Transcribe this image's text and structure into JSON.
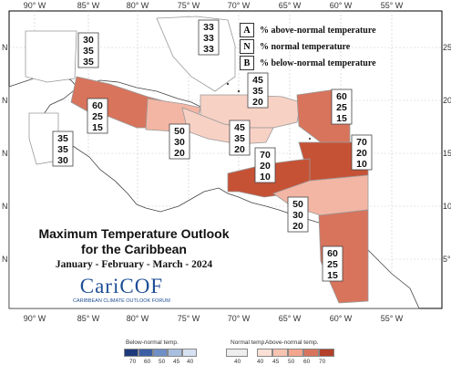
{
  "map": {
    "lon_labels": [
      "90° W",
      "85° W",
      "80° W",
      "75° W",
      "70° W",
      "65° W",
      "60° W",
      "55° W"
    ],
    "lat_labels": [
      "25°",
      "20°",
      "15°",
      "10°",
      "5°"
    ],
    "left_lat_labels": [
      "N",
      "N",
      "N",
      "N",
      "N"
    ],
    "regions": [
      {
        "id": "bahamas-north",
        "probs": [
          "33",
          "33",
          "33"
        ],
        "color": "#ffffff"
      },
      {
        "id": "gulf-west",
        "probs": [
          "30",
          "35",
          "35"
        ],
        "color": "#ffffff"
      },
      {
        "id": "belize-region",
        "probs": [
          "35",
          "35",
          "30"
        ],
        "color": "#ffffff"
      },
      {
        "id": "yucatan-strip",
        "probs": [
          "60",
          "25",
          "15"
        ],
        "color": "#d8745c"
      },
      {
        "id": "jamaica-cuba",
        "probs": [
          "50",
          "30",
          "20"
        ],
        "color": "#f3b6a4"
      },
      {
        "id": "greater-antilles-north",
        "probs": [
          "45",
          "35",
          "20"
        ],
        "color": "#f8d1c5"
      },
      {
        "id": "hispaniola-central",
        "probs": [
          "45",
          "35",
          "20"
        ],
        "color": "#f8d1c5"
      },
      {
        "id": "lesser-antilles-north",
        "probs": [
          "60",
          "25",
          "15"
        ],
        "color": "#d8745c"
      },
      {
        "id": "lesser-antilles-central",
        "probs": [
          "70",
          "20",
          "10"
        ],
        "color": "#c65236"
      },
      {
        "id": "caribbean-sea-south",
        "probs": [
          "70",
          "20",
          "10"
        ],
        "color": "#c65236"
      },
      {
        "id": "northern-sa-coast",
        "probs": [
          "50",
          "30",
          "20"
        ],
        "color": "#f3b6a4"
      },
      {
        "id": "guianas",
        "probs": [
          "60",
          "25",
          "15"
        ],
        "color": "#d8745c"
      }
    ]
  },
  "key": {
    "rows": [
      {
        "letter": "A",
        "label": "% above-normal temperature"
      },
      {
        "letter": "N",
        "label": "% normal temperature"
      },
      {
        "letter": "B",
        "label": "% below-normal temperature"
      }
    ]
  },
  "title": {
    "line1": "Maximum Temperature Outlook",
    "line2": "for the Caribbean",
    "period": "January - February - March - 2024"
  },
  "logo": {
    "name": "CariCOF",
    "subtitle": "CARIBBEAN CLIMATE OUTLOOK FORUM"
  },
  "scale": {
    "below_label": "Below-normal temp.",
    "normal_label": "Normal temp.",
    "above_label": "Above-normal temp.",
    "below_ticks": [
      "70",
      "60",
      "50",
      "45",
      "40"
    ],
    "normal_ticks": [
      "40"
    ],
    "above_ticks": [
      "40",
      "45",
      "50",
      "60",
      "70"
    ],
    "below_colors": [
      "#1f3a7a",
      "#3c5fa3",
      "#6f8fc6",
      "#a9bfe0",
      "#d6e1f1"
    ],
    "normal_color": "#eeeeee",
    "above_colors": [
      "#fbe0d6",
      "#f8c4b2",
      "#f3a68d",
      "#d8745c",
      "#b2402a"
    ]
  }
}
